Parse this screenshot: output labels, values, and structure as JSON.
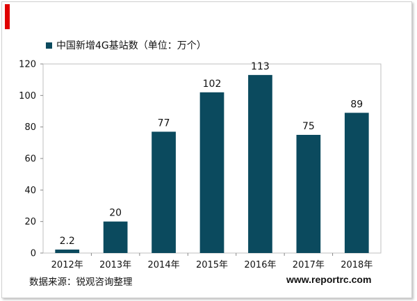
{
  "chart_data": {
    "type": "bar",
    "categories": [
      "2012年",
      "2013年",
      "2014年",
      "2015年",
      "2016年",
      "2017年",
      "2018年"
    ],
    "series": [
      {
        "name": "中国新增4G基站数（单位：万个）",
        "values": [
          2.2,
          20,
          77,
          102,
          113,
          75,
          89
        ],
        "color": "#0b4a5e"
      }
    ],
    "data_labels": [
      "2.2",
      "20",
      "77",
      "102",
      "113",
      "75",
      "89"
    ],
    "yticks": [
      "0",
      "20",
      "40",
      "60",
      "80",
      "100",
      "120"
    ],
    "ylim": [
      0,
      120
    ],
    "legend_position": "top-left",
    "grid": false
  },
  "footer": {
    "source": "数据来源：锐观咨询整理",
    "website": "www.reportrc.com"
  },
  "colors": {
    "accent": "#e00000",
    "bar": "#0b4a5e"
  }
}
